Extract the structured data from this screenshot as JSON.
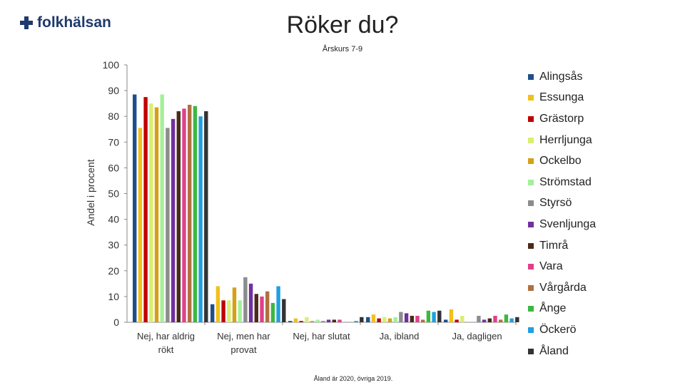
{
  "logo_text": "folkhälsan",
  "chart_data": {
    "type": "bar",
    "title": "Röker du?",
    "subtitle": "Årskurs 7-9",
    "ylabel": "Andel i procent",
    "xlabel": "",
    "ylim": [
      0,
      100
    ],
    "yticks": [
      0,
      10,
      20,
      30,
      40,
      50,
      60,
      70,
      80,
      90,
      100
    ],
    "categories": [
      [
        "Nej, har aldrig",
        "rökt"
      ],
      [
        "Nej, men har",
        "provat"
      ],
      [
        "Nej, har slutat"
      ],
      [
        "Ja, ibland"
      ],
      [
        "Ja, dagligen"
      ]
    ],
    "series": [
      {
        "name": "Alingsås",
        "color": "#1f4e8c",
        "values": [
          88.5,
          7,
          0.5,
          2,
          1
        ]
      },
      {
        "name": "Essunga",
        "color": "#f2c019",
        "values": [
          75.5,
          14,
          1.5,
          3,
          5
        ]
      },
      {
        "name": "Grästorp",
        "color": "#c00000",
        "values": [
          87.5,
          8.5,
          0.5,
          1.5,
          1
        ]
      },
      {
        "name": "Herrljunga",
        "color": "#d9ef6e",
        "values": [
          85,
          8.5,
          2,
          2,
          2.5
        ]
      },
      {
        "name": "Ockelbo",
        "color": "#d4a017",
        "values": [
          83.5,
          13.5,
          0.5,
          1.5,
          0
        ]
      },
      {
        "name": "Strömstad",
        "color": "#a3f09a",
        "values": [
          88.5,
          8.5,
          1,
          2,
          0
        ]
      },
      {
        "name": "Styrsö",
        "color": "#8c8c8c",
        "values": [
          75.5,
          17.5,
          0.5,
          4,
          2.5
        ]
      },
      {
        "name": "Svenljunga",
        "color": "#7030a0",
        "values": [
          79,
          15,
          1,
          3.5,
          1
        ]
      },
      {
        "name": "Timrå",
        "color": "#4a2a1a",
        "values": [
          82,
          11,
          1,
          2.5,
          1.5
        ]
      },
      {
        "name": "Vara",
        "color": "#e0408a",
        "values": [
          83,
          10,
          1,
          2.5,
          2.5
        ]
      },
      {
        "name": "Vårgårda",
        "color": "#b07040",
        "values": [
          84.5,
          12,
          0,
          1,
          1
        ]
      },
      {
        "name": "Ånge",
        "color": "#3cb840",
        "values": [
          84,
          7.5,
          0,
          4.5,
          3
        ]
      },
      {
        "name": "Öckerö",
        "color": "#1fa0e0",
        "values": [
          80,
          14,
          0.5,
          4,
          1.5
        ]
      },
      {
        "name": "Åland",
        "color": "#333333",
        "values": [
          82,
          9,
          2,
          4.5,
          2
        ]
      }
    ],
    "grid": false,
    "legend_position": "right"
  },
  "footnote": "Åland är 2020, övriga 2019."
}
